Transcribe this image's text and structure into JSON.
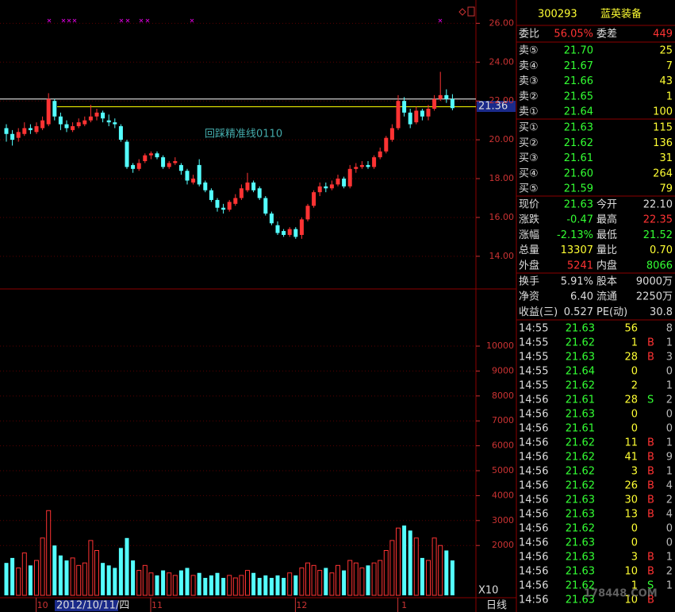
{
  "chart_data": [
    {
      "type": "candlestick",
      "annotation": "回踩精准线0110",
      "cursor_label": "2012/10/11/四",
      "price_marker": "21.36",
      "period_label": "日线",
      "lines": [
        {
          "value": 22.1,
          "color": "#ffffff"
        },
        {
          "value": 21.7,
          "color": "#ffff00"
        }
      ],
      "ylim": [
        12.4,
        27.2
      ],
      "yticks": [
        {
          "value": 14,
          "label": "14.00"
        },
        {
          "value": 16,
          "label": "16.00"
        },
        {
          "value": 18,
          "label": "18.00"
        },
        {
          "value": 20,
          "label": "20.00"
        },
        {
          "value": 22,
          "label": "22.00"
        },
        {
          "value": 24,
          "label": "24.00"
        },
        {
          "value": 26,
          "label": "26.00"
        }
      ],
      "up_color": "#ff3333",
      "down_color": "#54ffff",
      "categories": [
        null,
        null,
        null,
        null,
        null,
        null,
        "10",
        null,
        null,
        null,
        null,
        null,
        null,
        null,
        null,
        null,
        null,
        null,
        null,
        null,
        null,
        null,
        null,
        null,
        null,
        "11",
        null,
        null,
        null,
        null,
        null,
        null,
        null,
        null,
        null,
        null,
        null,
        null,
        null,
        null,
        null,
        null,
        null,
        null,
        null,
        null,
        null,
        null,
        null,
        "12",
        null,
        null,
        null,
        null,
        null,
        null,
        null,
        null,
        null,
        null,
        null,
        null,
        null,
        null,
        null,
        null,
        "1",
        null,
        null,
        null,
        null,
        null,
        null,
        null,
        null
      ],
      "ohlc": [
        [
          20.6,
          20.8,
          19.9,
          20.3
        ],
        [
          20.3,
          20.5,
          19.7,
          20.0
        ],
        [
          20.1,
          20.6,
          19.9,
          20.4
        ],
        [
          20.3,
          20.9,
          20.2,
          20.6
        ],
        [
          20.6,
          20.8,
          20.3,
          20.5
        ],
        [
          20.4,
          20.9,
          20.3,
          20.7
        ],
        [
          20.6,
          21.2,
          20.5,
          21.0
        ],
        [
          20.8,
          22.4,
          20.7,
          22.1
        ],
        [
          22.0,
          22.1,
          21.0,
          21.2
        ],
        [
          21.2,
          21.4,
          20.5,
          20.8
        ],
        [
          20.8,
          21.0,
          20.4,
          20.6
        ],
        [
          20.5,
          20.9,
          20.4,
          20.7
        ],
        [
          20.7,
          21.1,
          20.6,
          20.9
        ],
        [
          20.8,
          21.2,
          20.7,
          21.0
        ],
        [
          21.0,
          21.8,
          20.9,
          21.2
        ],
        [
          21.2,
          21.6,
          21.0,
          21.4
        ],
        [
          21.4,
          21.5,
          20.9,
          21.1
        ],
        [
          21.0,
          21.3,
          20.7,
          20.9
        ],
        [
          20.9,
          21.1,
          20.6,
          20.8
        ],
        [
          20.7,
          20.8,
          19.9,
          20.0
        ],
        [
          19.9,
          20.0,
          18.5,
          18.6
        ],
        [
          18.7,
          18.8,
          18.3,
          18.5
        ],
        [
          18.5,
          19.0,
          18.4,
          18.8
        ],
        [
          18.9,
          19.3,
          18.8,
          19.2
        ],
        [
          19.2,
          19.4,
          19.0,
          19.3
        ],
        [
          19.3,
          19.4,
          19.0,
          19.1
        ],
        [
          19.1,
          19.2,
          18.5,
          18.6
        ],
        [
          18.6,
          18.9,
          18.5,
          18.8
        ],
        [
          18.8,
          19.1,
          18.7,
          18.9
        ],
        [
          18.7,
          18.8,
          18.2,
          18.4
        ],
        [
          18.4,
          18.5,
          17.7,
          17.9
        ],
        [
          17.8,
          18.2,
          17.7,
          18.0
        ],
        [
          18.7,
          19.0,
          17.6,
          17.7
        ],
        [
          17.8,
          17.9,
          17.3,
          17.4
        ],
        [
          17.4,
          17.5,
          16.8,
          16.9
        ],
        [
          16.9,
          17.0,
          16.3,
          16.5
        ],
        [
          16.5,
          16.7,
          16.2,
          16.4
        ],
        [
          16.4,
          16.9,
          16.3,
          16.8
        ],
        [
          16.7,
          17.2,
          16.6,
          17.0
        ],
        [
          17.0,
          17.7,
          16.9,
          17.5
        ],
        [
          17.4,
          18.3,
          17.3,
          17.8
        ],
        [
          17.8,
          17.9,
          17.3,
          17.4
        ],
        [
          17.5,
          17.6,
          16.9,
          17.0
        ],
        [
          17.0,
          17.1,
          16.1,
          16.2
        ],
        [
          16.2,
          16.3,
          15.6,
          15.7
        ],
        [
          15.6,
          15.8,
          15.1,
          15.2
        ],
        [
          15.3,
          15.4,
          15.0,
          15.1
        ],
        [
          15.1,
          15.5,
          15.0,
          15.4
        ],
        [
          15.4,
          15.5,
          14.9,
          15.0
        ],
        [
          15.1,
          16.0,
          14.9,
          15.9
        ],
        [
          15.9,
          16.7,
          15.8,
          16.6
        ],
        [
          16.6,
          17.4,
          16.5,
          17.3
        ],
        [
          17.3,
          17.8,
          17.1,
          17.6
        ],
        [
          17.6,
          17.8,
          17.3,
          17.5
        ],
        [
          17.5,
          17.9,
          17.4,
          17.7
        ],
        [
          17.7,
          18.2,
          17.6,
          18.0
        ],
        [
          18.0,
          18.1,
          17.5,
          17.6
        ],
        [
          17.6,
          18.7,
          17.5,
          18.5
        ],
        [
          18.5,
          18.8,
          18.3,
          18.6
        ],
        [
          18.6,
          18.9,
          18.5,
          18.7
        ],
        [
          18.7,
          18.9,
          18.5,
          18.6
        ],
        [
          18.6,
          19.2,
          18.5,
          19.1
        ],
        [
          19.1,
          19.6,
          19.0,
          19.4
        ],
        [
          19.4,
          20.2,
          19.3,
          20.1
        ],
        [
          20.0,
          20.8,
          19.9,
          20.6
        ],
        [
          20.6,
          22.3,
          20.5,
          22.0
        ],
        [
          22.0,
          22.2,
          21.2,
          21.4
        ],
        [
          21.4,
          21.6,
          20.6,
          20.8
        ],
        [
          20.9,
          21.7,
          20.8,
          21.5
        ],
        [
          21.5,
          21.6,
          21.0,
          21.2
        ],
        [
          21.2,
          21.8,
          21.0,
          21.6
        ],
        [
          21.6,
          22.3,
          21.5,
          22.1
        ],
        [
          22.1,
          23.5,
          22.0,
          22.3
        ],
        [
          22.3,
          22.6,
          21.9,
          22.1
        ],
        [
          22.1,
          22.35,
          21.52,
          21.63
        ]
      ]
    },
    {
      "type": "bar",
      "unit_label": "X10",
      "ylim": [
        0,
        12230
      ],
      "yticks": [
        2000,
        3000,
        4000,
        5000,
        6000,
        7000,
        8000,
        9000,
        10000
      ],
      "values": [
        1300,
        1500,
        1100,
        1700,
        1200,
        1400,
        2300,
        3400,
        2000,
        1600,
        1400,
        1500,
        1200,
        1300,
        2200,
        1800,
        1300,
        1200,
        1100,
        1900,
        2300,
        1400,
        1000,
        1200,
        900,
        800,
        1000,
        900,
        800,
        1000,
        1100,
        800,
        900,
        700,
        800,
        900,
        700,
        800,
        700,
        800,
        1000,
        900,
        700,
        800,
        700,
        800,
        700,
        900,
        800,
        1100,
        1300,
        1200,
        1000,
        1100,
        900,
        1200,
        1000,
        1400,
        1300,
        1100,
        1200,
        1300,
        1400,
        1800,
        2200,
        2700,
        2800,
        2600,
        2300,
        1500,
        1400,
        2300,
        2000,
        1800,
        1400
      ]
    }
  ],
  "quote": {
    "code": "300293",
    "name": "蓝英装备",
    "ratio": [
      {
        "t": "委比",
        "c": "#dddddd"
      },
      {
        "t": "56.05%",
        "c": "#ff3333"
      },
      {
        "t": "委差",
        "c": "#dddddd"
      },
      {
        "t": "449",
        "c": "#ff3333"
      }
    ],
    "book_colors": [
      "#dddddd",
      "#33ff33",
      "#ffff33"
    ],
    "asks": [
      [
        "卖⑤",
        "21.70",
        "25"
      ],
      [
        "卖④",
        "21.67",
        "7"
      ],
      [
        "卖③",
        "21.66",
        "43"
      ],
      [
        "卖②",
        "21.65",
        "1"
      ],
      [
        "卖①",
        "21.64",
        "100"
      ]
    ],
    "bids": [
      [
        "买①",
        "21.63",
        "115"
      ],
      [
        "买②",
        "21.62",
        "136"
      ],
      [
        "买③",
        "21.61",
        "31"
      ],
      [
        "买④",
        "21.60",
        "264"
      ],
      [
        "买⑤",
        "21.59",
        "79"
      ]
    ],
    "stats": [
      [
        {
          "t": "现价",
          "c": "#dddddd"
        },
        {
          "t": "21.63",
          "c": "#33ff33"
        },
        {
          "t": "今开",
          "c": "#dddddd"
        },
        {
          "t": "22.10",
          "c": "#dddddd"
        }
      ],
      [
        {
          "t": "涨跌",
          "c": "#dddddd"
        },
        {
          "t": "-0.47",
          "c": "#33ff33"
        },
        {
          "t": "最高",
          "c": "#dddddd"
        },
        {
          "t": "22.35",
          "c": "#ff3333"
        }
      ],
      [
        {
          "t": "涨幅",
          "c": "#dddddd"
        },
        {
          "t": "-2.13%",
          "c": "#33ff33"
        },
        {
          "t": "最低",
          "c": "#dddddd"
        },
        {
          "t": "21.52",
          "c": "#33ff33"
        }
      ],
      [
        {
          "t": "总量",
          "c": "#dddddd"
        },
        {
          "t": "13307",
          "c": "#ffff33"
        },
        {
          "t": "量比",
          "c": "#dddddd"
        },
        {
          "t": "0.70",
          "c": "#ffff33"
        }
      ],
      [
        {
          "t": "外盘",
          "c": "#dddddd"
        },
        {
          "t": "5241",
          "c": "#ff3333"
        },
        {
          "t": "内盘",
          "c": "#dddddd"
        },
        {
          "t": "8066",
          "c": "#33ff33"
        }
      ]
    ],
    "info": [
      [
        {
          "t": "换手",
          "c": "#dddddd"
        },
        {
          "t": "5.91%",
          "c": "#dddddd"
        },
        {
          "t": "股本",
          "c": "#dddddd"
        },
        {
          "t": "9000万",
          "c": "#dddddd"
        }
      ],
      [
        {
          "t": "净资",
          "c": "#dddddd"
        },
        {
          "t": "6.40",
          "c": "#dddddd"
        },
        {
          "t": "流通",
          "c": "#dddddd"
        },
        {
          "t": "2250万",
          "c": "#dddddd"
        }
      ],
      [
        {
          "t": "收益(三)",
          "c": "#dddddd"
        },
        {
          "t": "0.527",
          "c": "#dddddd"
        },
        {
          "t": "PE(动)",
          "c": "#dddddd"
        },
        {
          "t": "30.8",
          "c": "#dddddd"
        }
      ]
    ],
    "tick_colors": [
      "#dddddd",
      "#33ff33",
      "#ffff33",
      null,
      "#bbbbbb"
    ],
    "flag_colors": {
      "B": "#ff3333",
      "S": "#33ff33"
    },
    "ticks": [
      [
        "14:55",
        "21.63",
        "56",
        null,
        "8"
      ],
      [
        "14:55",
        "21.62",
        "1",
        "B",
        "1"
      ],
      [
        "14:55",
        "21.63",
        "28",
        "B",
        "3"
      ],
      [
        "14:55",
        "21.64",
        "0",
        null,
        "0"
      ],
      [
        "14:55",
        "21.62",
        "2",
        null,
        "1"
      ],
      [
        "14:56",
        "21.61",
        "28",
        "S",
        "2"
      ],
      [
        "14:56",
        "21.63",
        "0",
        null,
        "0"
      ],
      [
        "14:56",
        "21.61",
        "0",
        null,
        "0"
      ],
      [
        "14:56",
        "21.62",
        "11",
        "B",
        "1"
      ],
      [
        "14:56",
        "21.62",
        "41",
        "B",
        "9"
      ],
      [
        "14:56",
        "21.62",
        "3",
        "B",
        "1"
      ],
      [
        "14:56",
        "21.62",
        "26",
        "B",
        "4"
      ],
      [
        "14:56",
        "21.63",
        "30",
        "B",
        "2"
      ],
      [
        "14:56",
        "21.63",
        "13",
        "B",
        "4"
      ],
      [
        "14:56",
        "21.62",
        "0",
        null,
        "0"
      ],
      [
        "14:56",
        "21.63",
        "0",
        null,
        "0"
      ],
      [
        "14:56",
        "21.63",
        "3",
        "B",
        "1"
      ],
      [
        "14:56",
        "21.63",
        "10",
        "B",
        "2"
      ],
      [
        "14:56",
        "21.62",
        "1",
        "S",
        "1"
      ],
      [
        "14:56",
        "21.63",
        "10",
        "B",
        null
      ]
    ],
    "watermark": "178448.COM"
  }
}
